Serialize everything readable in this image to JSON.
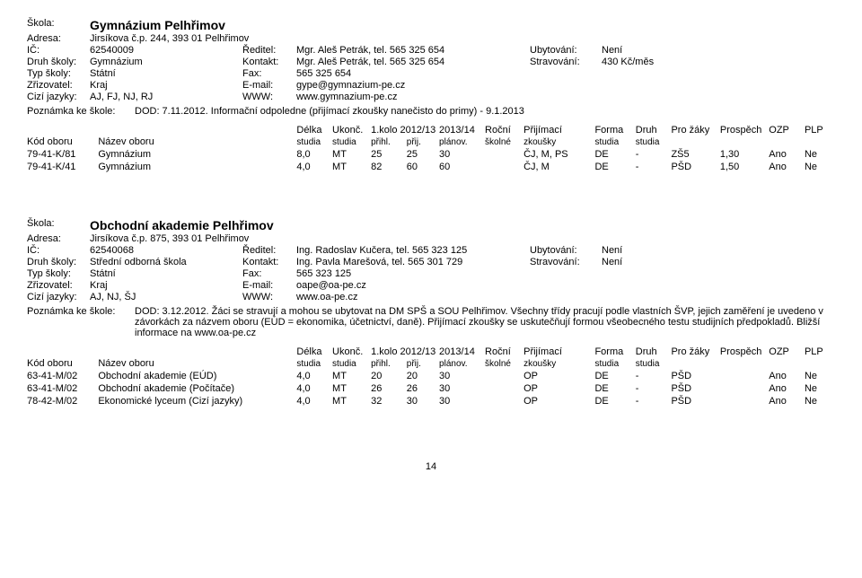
{
  "schools": [
    {
      "name": "Gymnázium Pelhřimov",
      "address": "Jirsíkova č.p. 244, 393 01 Pelhřimov",
      "ic": "62540009",
      "reditel_label": "Ředitel:",
      "reditel": "Mgr. Aleš Petrák, tel. 565 325 654",
      "ubytovani_label": "Ubytování:",
      "ubytovani": "Není",
      "druh_label": "Druh školy:",
      "druh": "Gymnázium",
      "kontakt_label": "Kontakt:",
      "kontakt": "Mgr. Aleš Petrák, tel. 565 325 654",
      "stravovani_label": "Stravování:",
      "stravovani": "430 Kč/měs",
      "typ_label": "Typ školy:",
      "typ": "Státní",
      "fax_label": "Fax:",
      "fax": "565 325 654",
      "zriz_label": "Zřizovatel:",
      "zriz": "Kraj",
      "email_label": "E-mail:",
      "email": "gype@gymnazium-pe.cz",
      "jazyky_label": "Cizí jazyky:",
      "jazyky": "AJ, FJ, NJ, RJ",
      "www_label": "WWW:",
      "www": "www.gymnazium-pe.cz",
      "note_label": "Poznámka ke škole:",
      "note": "DOD: 7.11.2012. Informační odpoledne (přijímací zkoušky nanečisto do primy) - 9.1.2013",
      "rows": [
        {
          "kod": "79-41-K/81",
          "nazev": "Gymnázium",
          "delka": "8,0",
          "ukonc": "MT",
          "prihl": "25",
          "prij": "25",
          "planov": "30",
          "rocni": "",
          "prijim": "ČJ, M, PS",
          "forma": "DE",
          "druh": "-",
          "zaky": "ZŠ5",
          "prosp": "1,30",
          "ozp": "Ano",
          "plp": "Ne"
        },
        {
          "kod": "79-41-K/41",
          "nazev": "Gymnázium",
          "delka": "4,0",
          "ukonc": "MT",
          "prihl": "82",
          "prij": "60",
          "planov": "60",
          "rocni": "",
          "prijim": "ČJ, M",
          "forma": "DE",
          "druh": "-",
          "zaky": "PŠD",
          "prosp": "1,50",
          "ozp": "Ano",
          "plp": "Ne"
        }
      ]
    },
    {
      "name": "Obchodní akademie Pelhřimov",
      "address": "Jirsíkova č.p. 875, 393 01 Pelhřimov",
      "ic": "62540068",
      "reditel_label": "Ředitel:",
      "reditel": "Ing. Radoslav Kučera, tel. 565 323 125",
      "ubytovani_label": "Ubytování:",
      "ubytovani": "Není",
      "druh_label": "Druh školy:",
      "druh": "Střední odborná škola",
      "kontakt_label": "Kontakt:",
      "kontakt": "Ing. Pavla Marešová, tel. 565 301 729",
      "stravovani_label": "Stravování:",
      "stravovani": "Není",
      "typ_label": "Typ školy:",
      "typ": "Státní",
      "fax_label": "Fax:",
      "fax": "565 323 125",
      "zriz_label": "Zřizovatel:",
      "zriz": "Kraj",
      "email_label": "E-mail:",
      "email": "oape@oa-pe.cz",
      "jazyky_label": "Cizí jazyky:",
      "jazyky": "AJ, NJ, ŠJ",
      "www_label": "WWW:",
      "www": "www.oa-pe.cz",
      "note_label": "Poznámka ke škole:",
      "note": "DOD: 3.12.2012. Žáci se stravují a mohou se ubytovat na DM SPŠ a SOU Pelhřimov. Všechny třídy pracují podle vlastních ŠVP, jejich zaměření je uvedeno v závorkách za názvem oboru (EÚD = ekonomika, účetnictví, daně). Přijímací zkoušky se uskutečňují formou všeobecného testu studijních předpokladů. Bližší informace na www.oa-pe.cz",
      "rows": [
        {
          "kod": "63-41-M/02",
          "nazev": "Obchodní akademie (EÚD)",
          "delka": "4,0",
          "ukonc": "MT",
          "prihl": "20",
          "prij": "20",
          "planov": "30",
          "rocni": "",
          "prijim": "OP",
          "forma": "DE",
          "druh": "-",
          "zaky": "PŠD",
          "prosp": "",
          "ozp": "Ano",
          "plp": "Ne"
        },
        {
          "kod": "63-41-M/02",
          "nazev": "Obchodní akademie (Počítače)",
          "delka": "4,0",
          "ukonc": "MT",
          "prihl": "26",
          "prij": "26",
          "planov": "30",
          "rocni": "",
          "prijim": "OP",
          "forma": "DE",
          "druh": "-",
          "zaky": "PŠD",
          "prosp": "",
          "ozp": "Ano",
          "plp": "Ne"
        },
        {
          "kod": "78-42-M/02",
          "nazev": "Ekonomické lyceum (Cizí jazyky)",
          "delka": "4,0",
          "ukonc": "MT",
          "prihl": "32",
          "prij": "30",
          "planov": "30",
          "rocni": "",
          "prijim": "OP",
          "forma": "DE",
          "druh": "-",
          "zaky": "PŠD",
          "prosp": "",
          "ozp": "Ano",
          "plp": "Ne"
        }
      ]
    }
  ],
  "labels": {
    "skola": "Škola:",
    "adresa": "Adresa:",
    "ic": "IČ:"
  },
  "headers": {
    "kod": "Kód oboru",
    "nazev": "Název oboru",
    "delka1": "Délka",
    "delka2": "studia",
    "ukonc1": "Ukonč.",
    "ukonc2": "studia",
    "kolo1": "1.kolo 2012/13",
    "prihl": "přihl.",
    "prij": "přij.",
    "planov1": "2013/14",
    "planov2": "plánov.",
    "rocni1": "Roční",
    "rocni2": "školné",
    "prijim1": "Přijímací",
    "prijim2": "zkoušky",
    "forma1": "Forma",
    "forma2": "studia",
    "druh1": "Druh",
    "druh2": "studia",
    "zaky": "Pro žáky",
    "prosp": "Prospěch",
    "ozp": "OZP",
    "plp": "PLP"
  },
  "page": "14"
}
